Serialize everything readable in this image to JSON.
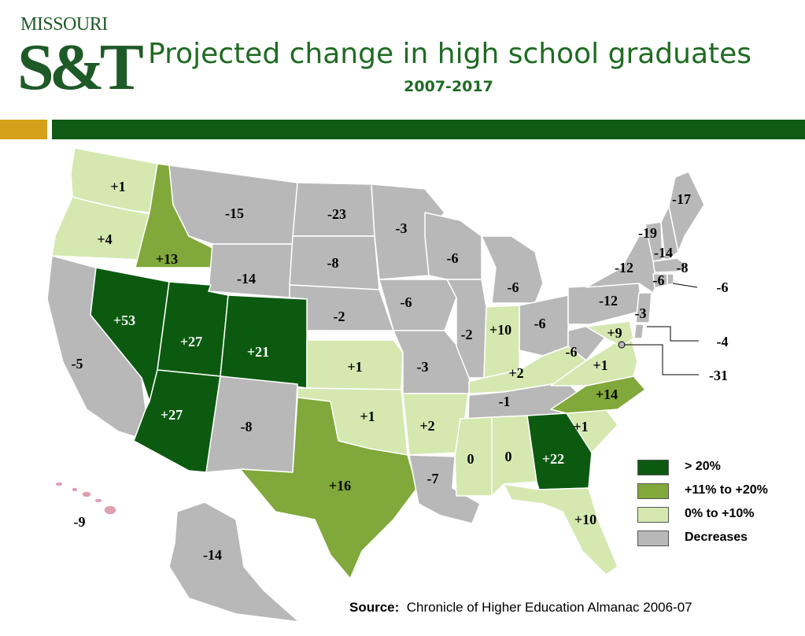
{
  "logo": {
    "wordmark": "MISSOURI",
    "monogram": "S&T"
  },
  "title": "Projected change in high school graduates",
  "subtitle": "2007-2017",
  "colors": {
    "gt20": "#0c5a10",
    "mid": "#80a83a",
    "low": "#d4e8b0",
    "decrease": "#b8b8b8",
    "title": "#1f6b23",
    "gold_bar": "#d6a01a",
    "green_bar": "#0f5a14"
  },
  "legend": [
    {
      "key": "gt20",
      "label": "> 20%"
    },
    {
      "key": "mid",
      "label": "+11% to +20%"
    },
    {
      "key": "low",
      "label": "0% to +10%"
    },
    {
      "key": "decrease",
      "label": "Decreases"
    }
  ],
  "states": {
    "WA": {
      "value": "+1",
      "category": "low"
    },
    "OR": {
      "value": "+4",
      "category": "low"
    },
    "ID": {
      "value": "+13",
      "category": "mid"
    },
    "MT": {
      "value": "-15",
      "category": "decrease"
    },
    "WY": {
      "value": "-14",
      "category": "decrease"
    },
    "ND": {
      "value": "-23",
      "category": "decrease"
    },
    "SD": {
      "value": "-8",
      "category": "decrease"
    },
    "NE": {
      "value": "-2",
      "category": "decrease"
    },
    "MN": {
      "value": "-3",
      "category": "decrease"
    },
    "IA": {
      "value": "-6",
      "category": "decrease"
    },
    "WI": {
      "value": "-6",
      "category": "decrease"
    },
    "MI": {
      "value": "-6",
      "category": "decrease"
    },
    "IL": {
      "value": "-2",
      "category": "decrease"
    },
    "IN": {
      "value": "+10",
      "category": "low"
    },
    "OH": {
      "value": "-6",
      "category": "decrease"
    },
    "PA": {
      "value": "-12",
      "category": "decrease"
    },
    "NY": {
      "value": "-12",
      "category": "decrease"
    },
    "VT": {
      "value": "-19",
      "category": "decrease"
    },
    "NH": {
      "value": "-14",
      "category": "decrease"
    },
    "ME": {
      "value": "-17",
      "category": "decrease"
    },
    "MA": {
      "value": "-8",
      "category": "decrease"
    },
    "CT": {
      "value": "-6",
      "category": "decrease"
    },
    "RI": {
      "value": "-6",
      "category": "decrease"
    },
    "NJ": {
      "value": "-3",
      "category": "decrease"
    },
    "DE": {
      "value": "-4",
      "category": "decrease"
    },
    "DC": {
      "value": "-31",
      "category": "decrease"
    },
    "MD": {
      "value": "+9",
      "category": "low"
    },
    "WV": {
      "value": "-6",
      "category": "decrease"
    },
    "VA": {
      "value": "+1",
      "category": "low"
    },
    "KY": {
      "value": "+2",
      "category": "low"
    },
    "TN": {
      "value": "-1",
      "category": "decrease"
    },
    "NC": {
      "value": "+14",
      "category": "mid"
    },
    "SC": {
      "value": "+1",
      "category": "low"
    },
    "GA": {
      "value": "+22",
      "category": "gt20"
    },
    "FL": {
      "value": "+10",
      "category": "low"
    },
    "AL": {
      "value": "0",
      "category": "low"
    },
    "MS": {
      "value": "0",
      "category": "low"
    },
    "LA": {
      "value": "-7",
      "category": "decrease"
    },
    "AR": {
      "value": "+2",
      "category": "low"
    },
    "MO": {
      "value": "-3",
      "category": "decrease"
    },
    "KS": {
      "value": "+1",
      "category": "low"
    },
    "OK": {
      "value": "+1",
      "category": "low"
    },
    "TX": {
      "value": "+16",
      "category": "mid"
    },
    "NM": {
      "value": "-8",
      "category": "decrease"
    },
    "CO": {
      "value": "+21",
      "category": "gt20"
    },
    "UT": {
      "value": "+27",
      "category": "gt20"
    },
    "AZ": {
      "value": "+27",
      "category": "gt20"
    },
    "NV": {
      "value": "+53",
      "category": "gt20"
    },
    "CA": {
      "value": "-5",
      "category": "decrease"
    },
    "AK": {
      "value": "-14",
      "category": "decrease"
    },
    "HI": {
      "value": "-9",
      "category": "decrease"
    }
  },
  "source": {
    "label": "Source:",
    "text": "Chronicle of Higher Education Almanac 2006-07"
  }
}
